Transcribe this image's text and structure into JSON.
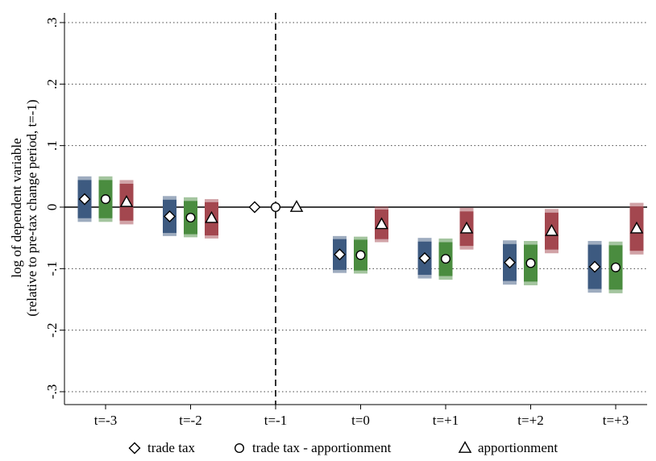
{
  "chart_data": {
    "type": "scatter",
    "ylabel_line1": "log of dependent variable",
    "ylabel_line2": "(relative to pre-tax change period, t=-1)",
    "ylim": [
      -0.3,
      0.3
    ],
    "yticks": [
      {
        "value": 0.3,
        "label": ".3"
      },
      {
        "value": 0.2,
        "label": ".2"
      },
      {
        "value": 0.1,
        "label": ".1"
      },
      {
        "value": 0,
        "label": "0"
      },
      {
        "value": -0.1,
        "label": "-.1"
      },
      {
        "value": -0.2,
        "label": "-.2"
      },
      {
        "value": -0.3,
        "label": "-.3"
      }
    ],
    "categories": [
      "t=-3",
      "t=-2",
      "t=-1",
      "t=0",
      "t=+1",
      "t=+2",
      "t=+3"
    ],
    "reference_category": "t=-1",
    "grid": true,
    "legend_position": "bottom",
    "series": [
      {
        "name": "trade tax",
        "marker": "diamond",
        "color": "#3d5a80",
        "estimates": [
          0.013,
          -0.015,
          0,
          -0.077,
          -0.083,
          -0.09,
          -0.097
        ],
        "ci90": [
          [
            -0.018,
            0.044
          ],
          [
            -0.042,
            0.012
          ],
          null,
          [
            -0.102,
            -0.052
          ],
          [
            -0.11,
            -0.056
          ],
          [
            -0.12,
            -0.06
          ],
          [
            -0.133,
            -0.061
          ]
        ],
        "ci95": [
          [
            -0.024,
            0.05
          ],
          [
            -0.047,
            0.018
          ],
          null,
          [
            -0.107,
            -0.047
          ],
          [
            -0.116,
            -0.05
          ],
          [
            -0.126,
            -0.054
          ],
          [
            -0.139,
            -0.055
          ]
        ]
      },
      {
        "name": "trade tax - apportionment",
        "marker": "circle",
        "color": "#4a8c3f",
        "estimates": [
          0.013,
          -0.017,
          0,
          -0.078,
          -0.084,
          -0.091,
          -0.098
        ],
        "ci90": [
          [
            -0.018,
            0.044
          ],
          [
            -0.044,
            0.01
          ],
          null,
          [
            -0.103,
            -0.053
          ],
          [
            -0.112,
            -0.057
          ],
          [
            -0.121,
            -0.061
          ],
          [
            -0.134,
            -0.062
          ]
        ],
        "ci95": [
          [
            -0.024,
            0.05
          ],
          [
            -0.049,
            0.016
          ],
          null,
          [
            -0.108,
            -0.048
          ],
          [
            -0.118,
            -0.051
          ],
          [
            -0.127,
            -0.055
          ],
          [
            -0.14,
            -0.056
          ]
        ]
      },
      {
        "name": "apportionment",
        "marker": "triangle",
        "color": "#a3474f",
        "estimates": [
          0.008,
          -0.018,
          0,
          -0.028,
          -0.035,
          -0.039,
          -0.035
        ],
        "ci90": [
          [
            -0.022,
            0.038
          ],
          [
            -0.046,
            0.008
          ],
          null,
          [
            -0.052,
            -0.004
          ],
          [
            -0.063,
            -0.007
          ],
          [
            -0.069,
            -0.009
          ],
          [
            -0.071,
            0.001
          ]
        ],
        "ci95": [
          [
            -0.028,
            0.044
          ],
          [
            -0.051,
            0.013
          ],
          null,
          [
            -0.057,
            0.001
          ],
          [
            -0.069,
            -0.001
          ],
          [
            -0.075,
            -0.003
          ],
          [
            -0.077,
            0.007
          ]
        ]
      }
    ]
  }
}
